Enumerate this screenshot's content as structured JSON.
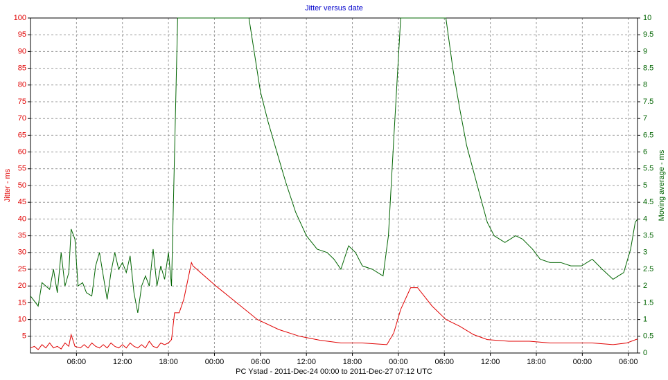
{
  "chart_data": {
    "type": "line",
    "title": "Jitter versus date",
    "xlabel": "PC Ystad  -  2011-Dec-24 00:00  to  2011-Dec-27 07:12 UTC",
    "ylabel": "Jitter - ms",
    "y2label": "Moving average - ms",
    "xlim": [
      0,
      79.2
    ],
    "xticks": [
      {
        "value": 6,
        "label": "06:00"
      },
      {
        "value": 12,
        "label": "12:00"
      },
      {
        "value": 18,
        "label": "18:00"
      },
      {
        "value": 24,
        "label": "00:00"
      },
      {
        "value": 30,
        "label": "06:00"
      },
      {
        "value": 36,
        "label": "12:00"
      },
      {
        "value": 42,
        "label": "18:00"
      },
      {
        "value": 48,
        "label": "00:00"
      },
      {
        "value": 54,
        "label": "06:00"
      },
      {
        "value": 60,
        "label": "12:00"
      },
      {
        "value": 66,
        "label": "18:00"
      },
      {
        "value": 72,
        "label": "00:00"
      },
      {
        "value": 78,
        "label": "06:00"
      }
    ],
    "ylim": [
      0,
      100
    ],
    "yticks": [
      5,
      10,
      15,
      20,
      25,
      30,
      35,
      40,
      45,
      50,
      55,
      60,
      65,
      70,
      75,
      80,
      85,
      90,
      95,
      100
    ],
    "y2lim": [
      0,
      10
    ],
    "y2ticks": [
      0,
      0.5,
      1,
      1.5,
      2,
      2.5,
      3,
      3.5,
      4,
      4.5,
      5,
      5.5,
      6,
      6.5,
      7,
      7.5,
      8,
      8.5,
      9,
      9.5,
      10
    ],
    "grid": true,
    "series": [
      {
        "color": "#e00000",
        "axis": "y",
        "x": [
          0,
          0.5,
          1,
          1.5,
          2,
          2.5,
          3,
          3.5,
          4,
          4.5,
          5,
          5.3,
          5.8,
          6.5,
          7,
          7.5,
          8,
          8.5,
          9,
          9.5,
          10,
          10.5,
          11,
          11.5,
          12,
          12.5,
          13,
          13.5,
          14,
          14.5,
          15,
          15.5,
          16,
          16.5,
          17,
          17.5,
          18,
          18.4,
          18.8,
          19.4,
          20,
          21,
          21.2,
          24.2,
          26.9,
          29.6,
          32.4,
          35.1,
          37.8,
          40.5,
          43.3,
          45.1,
          46.5,
          47.4,
          48.3,
          49.6,
          50.5,
          52.4,
          54.2,
          56,
          57.8,
          59.6,
          62.4,
          65.1,
          67.8,
          70.5,
          73.3,
          76,
          77.8,
          79.2
        ],
        "values": [
          1.5,
          2,
          1,
          2.5,
          1.5,
          3,
          1.5,
          2,
          1.2,
          3,
          2,
          5.5,
          2,
          1.5,
          2.5,
          1.5,
          3,
          2,
          1.5,
          2.5,
          1.5,
          3,
          2,
          1.5,
          2.5,
          1.5,
          3,
          2,
          1.5,
          2.5,
          1.5,
          3.5,
          2,
          1.5,
          3,
          2.5,
          3,
          4,
          12,
          12,
          16,
          27,
          26,
          20,
          15,
          10,
          7,
          5,
          3.8,
          3,
          3,
          2.7,
          2.5,
          6,
          13,
          19.5,
          19.5,
          14,
          10,
          8,
          5.5,
          4,
          3.5,
          3.5,
          3,
          3,
          3,
          2.5,
          3,
          4.2
        ]
      },
      {
        "color": "#006400",
        "axis": "y2",
        "x": [
          0,
          1,
          1.5,
          2,
          2.5,
          3,
          3.5,
          4,
          4.5,
          5,
          5.3,
          5.8,
          6.2,
          6.8,
          7.3,
          8,
          8.5,
          9,
          9.5,
          10,
          10.5,
          11,
          11.5,
          12,
          12.5,
          13,
          13.5,
          14,
          14.5,
          15,
          15.5,
          16,
          16.5,
          17,
          17.5,
          18,
          18.4,
          18.8,
          19.2,
          28.5,
          30,
          31,
          32.4,
          33.3,
          34.6,
          36,
          37.4,
          38.7,
          39.6,
          40.5,
          41.5,
          42.4,
          43.3,
          44.6,
          46,
          46.7,
          47.4,
          48.3,
          54.2,
          55.1,
          56,
          56.9,
          58.3,
          59.6,
          60.5,
          61.9,
          63.3,
          64.2,
          65.5,
          66.5,
          67.8,
          69.2,
          70.5,
          71.9,
          73.3,
          74.6,
          76,
          77.4,
          78.3,
          78.9,
          79.2
        ],
        "values": [
          1.7,
          1.4,
          2.1,
          2.0,
          1.9,
          2.5,
          1.8,
          3.0,
          2.0,
          2.4,
          3.7,
          3.4,
          2.0,
          2.1,
          1.8,
          1.7,
          2.6,
          3.0,
          2.3,
          1.6,
          2.4,
          3.0,
          2.5,
          2.7,
          2.4,
          2.9,
          1.8,
          1.2,
          2.0,
          2.3,
          2.0,
          3.1,
          2.0,
          2.6,
          2.2,
          3.0,
          2.0,
          6.0,
          10,
          10,
          7.8,
          6.9,
          5.8,
          5.1,
          4.2,
          3.5,
          3.1,
          3.0,
          2.8,
          2.5,
          3.2,
          3.0,
          2.6,
          2.5,
          2.3,
          3.5,
          6.4,
          10,
          10,
          8.5,
          7.3,
          6.2,
          5.0,
          3.9,
          3.5,
          3.3,
          3.5,
          3.4,
          3.1,
          2.8,
          2.7,
          2.7,
          2.6,
          2.6,
          2.8,
          2.5,
          2.2,
          2.4,
          3.1,
          3.9,
          4.0
        ]
      }
    ]
  }
}
